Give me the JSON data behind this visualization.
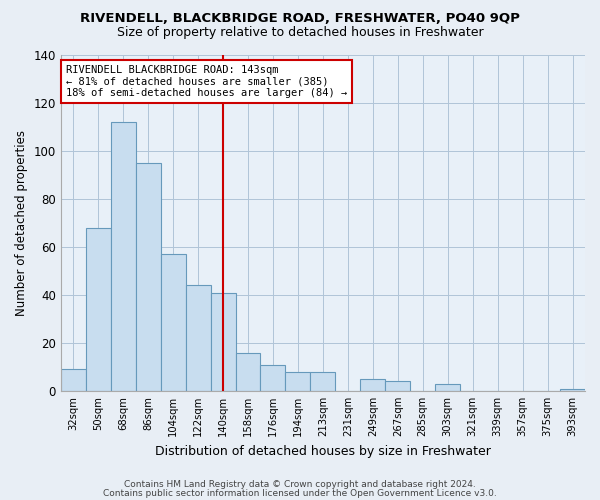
{
  "title": "RIVENDELL, BLACKBRIDGE ROAD, FRESHWATER, PO40 9QP",
  "subtitle": "Size of property relative to detached houses in Freshwater",
  "xlabel": "Distribution of detached houses by size in Freshwater",
  "ylabel": "Number of detached properties",
  "bar_labels": [
    "32sqm",
    "50sqm",
    "68sqm",
    "86sqm",
    "104sqm",
    "122sqm",
    "140sqm",
    "158sqm",
    "176sqm",
    "194sqm",
    "213sqm",
    "231sqm",
    "249sqm",
    "267sqm",
    "285sqm",
    "303sqm",
    "321sqm",
    "339sqm",
    "357sqm",
    "375sqm",
    "393sqm"
  ],
  "bar_values": [
    9,
    68,
    112,
    95,
    57,
    44,
    41,
    16,
    11,
    8,
    8,
    0,
    5,
    4,
    0,
    3,
    0,
    0,
    0,
    0,
    1
  ],
  "bar_color": "#c8ddef",
  "bar_edge_color": "#6699bb",
  "vline_x_idx": 6,
  "vline_color": "#cc0000",
  "annotation_text": "RIVENDELL BLACKBRIDGE ROAD: 143sqm\n← 81% of detached houses are smaller (385)\n18% of semi-detached houses are larger (84) →",
  "annotation_box_color": "#ffffff",
  "annotation_box_edge": "#cc0000",
  "ylim": [
    0,
    140
  ],
  "footer_line1": "Contains HM Land Registry data © Crown copyright and database right 2024.",
  "footer_line2": "Contains public sector information licensed under the Open Government Licence v3.0.",
  "fig_bg_color": "#e8eef5",
  "plot_bg_color": "#e8f0f8"
}
